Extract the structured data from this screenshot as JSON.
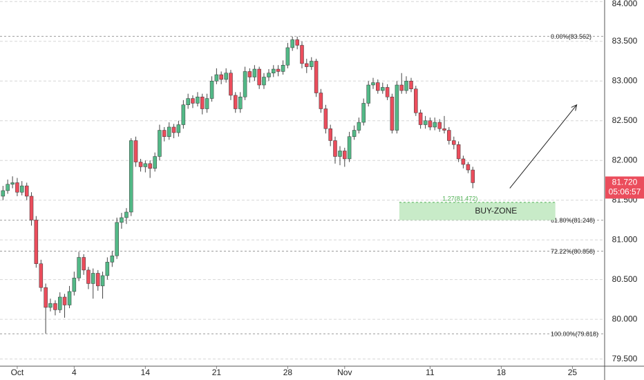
{
  "chart_data": {
    "type": "candlestick",
    "up_color": "#53b987",
    "down_color": "#eb4d5c",
    "wick_color": "#444444",
    "xlim": [
      -1.21,
      41.26
    ],
    "ylim": [
      79.41,
      84.02
    ],
    "xticks": [
      {
        "value": 0,
        "label": "Oct"
      },
      4,
      {
        "value": 9,
        "label": "14"
      },
      {
        "value": 14,
        "label": "21"
      },
      {
        "value": 19,
        "label": "28"
      },
      {
        "value": 23,
        "label": "Nov"
      },
      {
        "value": 29,
        "label": "11"
      },
      {
        "value": 34,
        "label": "18"
      },
      {
        "value": 39,
        "label": "25"
      }
    ],
    "yticks": [
      {
        "value": 79.5,
        "label": "79.500"
      },
      {
        "value": 80,
        "label": "80.000"
      },
      {
        "value": 80.5,
        "label": "80.500"
      },
      {
        "value": 81,
        "label": "81.000"
      },
      {
        "value": 81.5,
        "label": "81.500"
      },
      {
        "value": 82,
        "label": "82.000"
      },
      {
        "value": 82.5,
        "label": "82.500"
      },
      {
        "value": 83,
        "label": "83.000"
      },
      {
        "value": 83.5,
        "label": "83.500"
      },
      {
        "value": 84,
        "label": "84.000"
      }
    ],
    "grid": true,
    "x": [
      -1,
      -0.67,
      -0.33,
      0,
      0.33,
      0.67,
      1,
      1.33,
      1.67,
      2,
      2.33,
      2.67,
      3,
      3.33,
      3.67,
      4,
      4.33,
      4.67,
      5,
      5.33,
      5.67,
      6,
      6.33,
      6.67,
      7,
      7.33,
      7.67,
      8,
      8.33,
      8.67,
      9,
      9.33,
      9.67,
      10,
      10.33,
      10.67,
      11,
      11.33,
      11.67,
      12,
      12.33,
      12.67,
      13,
      13.33,
      13.67,
      14,
      14.33,
      14.67,
      15,
      15.33,
      15.67,
      16,
      16.33,
      16.67,
      17,
      17.33,
      17.67,
      18,
      18.33,
      18.67,
      19,
      19.33,
      19.67,
      20,
      20.33,
      20.67,
      21,
      21.33,
      21.67,
      22,
      22.33,
      22.67,
      23,
      23.33,
      23.67,
      24,
      24.33,
      24.67,
      25,
      25.33,
      25.67,
      26,
      26.33,
      26.67,
      27,
      27.33,
      27.67,
      28,
      28.33,
      28.67,
      29,
      29.33,
      29.67,
      30,
      30.33,
      30.67,
      31,
      31.33,
      31.67,
      32
    ],
    "ohlc": [
      [
        81.55,
        81.68,
        81.5,
        81.62
      ],
      [
        81.62,
        81.76,
        81.58,
        81.7
      ],
      [
        81.7,
        81.8,
        81.65,
        81.72
      ],
      [
        81.72,
        81.78,
        81.55,
        81.6
      ],
      [
        81.6,
        81.74,
        81.56,
        81.68
      ],
      [
        81.68,
        81.72,
        81.5,
        81.55
      ],
      [
        81.55,
        81.6,
        81.18,
        81.25
      ],
      [
        81.25,
        81.3,
        80.65,
        80.7
      ],
      [
        80.7,
        80.75,
        80.35,
        80.4
      ],
      [
        80.4,
        80.45,
        79.82,
        80.15
      ],
      [
        80.15,
        80.26,
        80.1,
        80.2
      ],
      [
        80.2,
        80.24,
        80.05,
        80.12
      ],
      [
        80.12,
        80.34,
        80.08,
        80.28
      ],
      [
        80.28,
        80.32,
        80.02,
        80.18
      ],
      [
        80.18,
        80.42,
        80.14,
        80.35
      ],
      [
        80.35,
        80.6,
        80.3,
        80.52
      ],
      [
        80.52,
        80.85,
        80.48,
        80.78
      ],
      [
        80.78,
        80.82,
        80.56,
        80.62
      ],
      [
        80.62,
        80.66,
        80.38,
        80.45
      ],
      [
        80.45,
        80.64,
        80.26,
        80.58
      ],
      [
        80.58,
        80.62,
        80.36,
        80.42
      ],
      [
        80.42,
        80.6,
        80.26,
        80.55
      ],
      [
        80.55,
        80.78,
        80.5,
        80.72
      ],
      [
        80.72,
        80.86,
        80.66,
        80.8
      ],
      [
        80.8,
        81.28,
        80.76,
        81.22
      ],
      [
        81.22,
        81.34,
        81.14,
        81.28
      ],
      [
        81.28,
        81.4,
        81.2,
        81.35
      ],
      [
        81.35,
        82.28,
        81.3,
        82.25
      ],
      [
        82.25,
        82.3,
        81.92,
        81.98
      ],
      [
        81.98,
        82.02,
        81.86,
        81.92
      ],
      [
        81.92,
        82.0,
        81.85,
        81.96
      ],
      [
        81.96,
        82.0,
        81.78,
        81.9
      ],
      [
        81.9,
        82.1,
        81.86,
        82.05
      ],
      [
        82.05,
        82.45,
        82.0,
        82.38
      ],
      [
        82.38,
        82.42,
        82.24,
        82.3
      ],
      [
        82.3,
        82.48,
        82.26,
        82.42
      ],
      [
        82.42,
        82.46,
        82.28,
        82.35
      ],
      [
        82.35,
        82.5,
        82.3,
        82.45
      ],
      [
        82.45,
        82.76,
        82.4,
        82.7
      ],
      [
        82.7,
        82.84,
        82.65,
        82.78
      ],
      [
        82.78,
        82.82,
        82.66,
        82.72
      ],
      [
        82.72,
        82.86,
        82.68,
        82.8
      ],
      [
        82.8,
        82.84,
        82.58,
        82.65
      ],
      [
        82.65,
        82.84,
        82.6,
        82.78
      ],
      [
        82.78,
        83.06,
        82.74,
        83.0
      ],
      [
        83.0,
        83.16,
        82.96,
        83.08
      ],
      [
        83.08,
        83.12,
        82.96,
        83.02
      ],
      [
        83.02,
        83.16,
        82.98,
        83.1
      ],
      [
        83.1,
        83.14,
        82.76,
        82.82
      ],
      [
        82.82,
        82.86,
        82.6,
        82.65
      ],
      [
        82.65,
        82.86,
        82.6,
        82.8
      ],
      [
        82.8,
        83.18,
        82.76,
        83.12
      ],
      [
        83.12,
        83.16,
        82.98,
        83.05
      ],
      [
        83.05,
        83.2,
        83.0,
        83.15
      ],
      [
        83.15,
        83.18,
        82.9,
        82.95
      ],
      [
        82.95,
        83.1,
        82.9,
        83.05
      ],
      [
        83.05,
        83.15,
        83.0,
        83.1
      ],
      [
        83.1,
        83.2,
        83.05,
        83.15
      ],
      [
        83.15,
        83.2,
        83.06,
        83.12
      ],
      [
        83.12,
        83.26,
        83.08,
        83.2
      ],
      [
        83.2,
        83.48,
        83.16,
        83.42
      ],
      [
        83.42,
        83.56,
        83.38,
        83.52
      ],
      [
        83.52,
        83.56,
        83.4,
        83.45
      ],
      [
        83.45,
        83.5,
        83.16,
        83.22
      ],
      [
        83.22,
        83.28,
        83.1,
        83.18
      ],
      [
        83.18,
        83.3,
        83.14,
        83.25
      ],
      [
        83.25,
        83.28,
        82.8,
        82.85
      ],
      [
        82.85,
        82.9,
        82.6,
        82.65
      ],
      [
        82.65,
        82.7,
        82.34,
        82.4
      ],
      [
        82.4,
        82.45,
        82.18,
        82.25
      ],
      [
        82.25,
        82.3,
        81.96,
        82.05
      ],
      [
        82.05,
        82.18,
        81.94,
        82.12
      ],
      [
        82.12,
        82.16,
        81.92,
        82.02
      ],
      [
        82.02,
        82.36,
        81.98,
        82.3
      ],
      [
        82.3,
        82.44,
        82.26,
        82.38
      ],
      [
        82.38,
        82.54,
        82.34,
        82.48
      ],
      [
        82.48,
        82.78,
        82.44,
        82.72
      ],
      [
        82.72,
        83.0,
        82.68,
        82.95
      ],
      [
        82.95,
        83.04,
        82.9,
        82.98
      ],
      [
        82.98,
        83.02,
        82.84,
        82.88
      ],
      [
        82.88,
        82.98,
        82.84,
        82.92
      ],
      [
        82.92,
        82.96,
        82.76,
        82.8
      ],
      [
        82.8,
        82.84,
        82.34,
        82.38
      ],
      [
        82.38,
        83.0,
        82.34,
        82.95
      ],
      [
        82.95,
        83.1,
        82.84,
        82.88
      ],
      [
        82.88,
        83.06,
        82.84,
        83.0
      ],
      [
        83.0,
        83.04,
        82.86,
        82.9
      ],
      [
        82.9,
        82.94,
        82.56,
        82.6
      ],
      [
        82.6,
        82.64,
        82.4,
        82.45
      ],
      [
        82.45,
        82.56,
        82.4,
        82.5
      ],
      [
        82.5,
        82.54,
        82.38,
        82.42
      ],
      [
        82.42,
        82.54,
        82.38,
        82.48
      ],
      [
        82.48,
        82.52,
        82.36,
        82.4
      ],
      [
        82.4,
        82.56,
        82.34,
        82.38
      ],
      [
        82.38,
        82.42,
        82.2,
        82.25
      ],
      [
        82.25,
        82.3,
        82.14,
        82.2
      ],
      [
        82.2,
        82.24,
        81.98,
        82.02
      ],
      [
        82.02,
        82.06,
        81.9,
        81.95
      ],
      [
        81.95,
        81.98,
        81.84,
        81.88
      ],
      [
        81.88,
        81.92,
        81.65,
        81.72
      ]
    ],
    "fib_levels": [
      {
        "label": "0.00%(83.562)",
        "value": 83.562
      },
      {
        "label": "61.80%(81.248)",
        "value": 81.248
      },
      {
        "label": "72.22%(80.858)",
        "value": 80.858
      },
      {
        "label": "100.00%(79.818)",
        "value": 79.818
      }
    ],
    "zone": {
      "label": "BUY-ZONE",
      "level_label": "1.27(81.472)",
      "low": 81.248,
      "high": 81.472,
      "x": [
        26.84,
        37.8
      ],
      "color": "#c8ebc8"
    },
    "arrow": {
      "x": [
        34.6,
        39.3
      ],
      "y": [
        81.65,
        82.7
      ]
    },
    "last_price": {
      "value": 81.72,
      "label": "81.720",
      "countdown": "05:06:57",
      "color": "#eb4d5c"
    }
  }
}
